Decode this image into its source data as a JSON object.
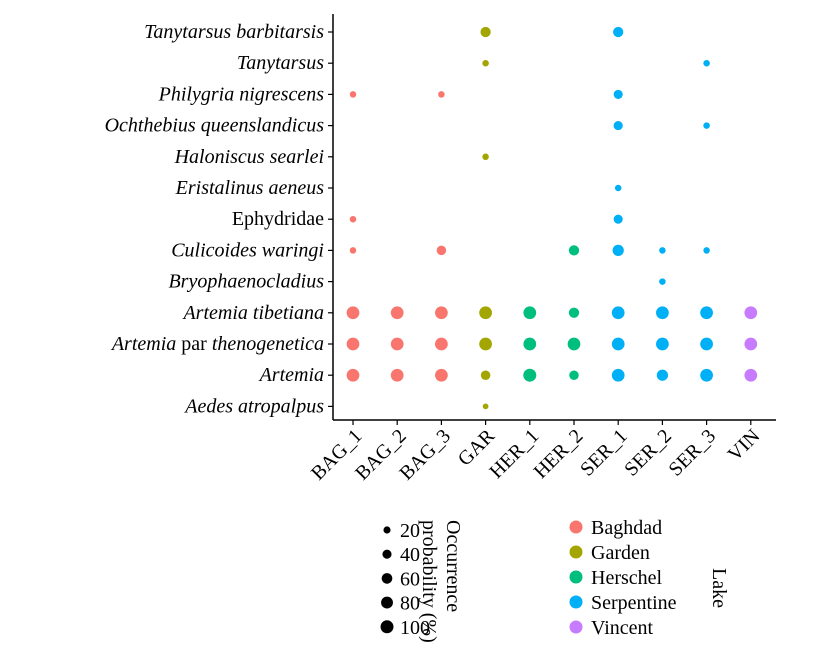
{
  "chart_data": {
    "type": "scatter",
    "title": "",
    "xlabel": "",
    "ylabel": "",
    "x_categories": [
      "BAG_1",
      "BAG_2",
      "BAG_3",
      "GAR",
      "HER_1",
      "HER_2",
      "SER_1",
      "SER_2",
      "SER_3",
      "VIN"
    ],
    "y_categories": [
      {
        "key": "tanytarsus-barbitarsis",
        "parts": [
          {
            "text": "Tanytarsus barbitarsis",
            "italic": true
          }
        ]
      },
      {
        "key": "tanytarsus",
        "parts": [
          {
            "text": "Tanytarsus",
            "italic": true
          }
        ]
      },
      {
        "key": "philygria-nigrescens",
        "parts": [
          {
            "text": "Philygria nigrescens",
            "italic": true
          }
        ]
      },
      {
        "key": "ochthebius-queenslandicus",
        "parts": [
          {
            "text": "Ochthebius queenslandicus",
            "italic": true
          }
        ]
      },
      {
        "key": "haloniscus-searlei",
        "parts": [
          {
            "text": "Haloniscus searlei",
            "italic": true
          }
        ]
      },
      {
        "key": "eristalinus-aeneus",
        "parts": [
          {
            "text": "Eristalinus aeneus",
            "italic": true
          }
        ]
      },
      {
        "key": "ephydridae",
        "parts": [
          {
            "text": "Ephydridae",
            "italic": false
          }
        ]
      },
      {
        "key": "culicoides-waringi",
        "parts": [
          {
            "text": "Culicoides waringi",
            "italic": true
          }
        ]
      },
      {
        "key": "bryophaenocladius",
        "parts": [
          {
            "text": "Bryophaenocladius",
            "italic": true
          }
        ]
      },
      {
        "key": "artemia-tibetiana",
        "parts": [
          {
            "text": "Artemia tibetiana",
            "italic": true
          }
        ]
      },
      {
        "key": "artemia-parthenogenetica",
        "parts": [
          {
            "text": "Artemia",
            "italic": true
          },
          {
            "text": " par ",
            "italic": false
          },
          {
            "text": "thenogenetica",
            "italic": true
          }
        ]
      },
      {
        "key": "artemia",
        "parts": [
          {
            "text": "Artemia",
            "italic": true
          }
        ]
      },
      {
        "key": "aedes-atropalpus",
        "parts": [
          {
            "text": "Aedes atropalpus",
            "italic": true
          }
        ]
      }
    ],
    "site_lake": {
      "BAG_1": "Baghdad",
      "BAG_2": "Baghdad",
      "BAG_3": "Baghdad",
      "GAR": "Garden",
      "HER_1": "Herschel",
      "HER_2": "Herschel",
      "SER_1": "Serpentine",
      "SER_2": "Serpentine",
      "SER_3": "Serpentine",
      "VIN": "Vincent"
    },
    "points": [
      {
        "y": 0,
        "x": "GAR",
        "value": 55
      },
      {
        "y": 0,
        "x": "SER_1",
        "value": 55
      },
      {
        "y": 1,
        "x": "GAR",
        "value": 15
      },
      {
        "y": 1,
        "x": "SER_3",
        "value": 15
      },
      {
        "y": 2,
        "x": "BAG_1",
        "value": 15
      },
      {
        "y": 2,
        "x": "BAG_3",
        "value": 15
      },
      {
        "y": 2,
        "x": "SER_1",
        "value": 40
      },
      {
        "y": 3,
        "x": "SER_1",
        "value": 40
      },
      {
        "y": 3,
        "x": "SER_3",
        "value": 15
      },
      {
        "y": 4,
        "x": "GAR",
        "value": 15
      },
      {
        "y": 5,
        "x": "SER_1",
        "value": 15
      },
      {
        "y": 6,
        "x": "BAG_1",
        "value": 15
      },
      {
        "y": 6,
        "x": "SER_1",
        "value": 40
      },
      {
        "y": 7,
        "x": "BAG_1",
        "value": 15
      },
      {
        "y": 7,
        "x": "BAG_3",
        "value": 45
      },
      {
        "y": 7,
        "x": "HER_2",
        "value": 55
      },
      {
        "y": 7,
        "x": "SER_1",
        "value": 70
      },
      {
        "y": 7,
        "x": "SER_2",
        "value": 15
      },
      {
        "y": 7,
        "x": "SER_3",
        "value": 15
      },
      {
        "y": 8,
        "x": "SER_2",
        "value": 15
      },
      {
        "y": 9,
        "x": "BAG_1",
        "value": 95
      },
      {
        "y": 9,
        "x": "BAG_2",
        "value": 95
      },
      {
        "y": 9,
        "x": "BAG_3",
        "value": 95
      },
      {
        "y": 9,
        "x": "GAR",
        "value": 95
      },
      {
        "y": 9,
        "x": "HER_1",
        "value": 95
      },
      {
        "y": 9,
        "x": "HER_2",
        "value": 55
      },
      {
        "y": 9,
        "x": "SER_1",
        "value": 95
      },
      {
        "y": 9,
        "x": "SER_2",
        "value": 95
      },
      {
        "y": 9,
        "x": "SER_3",
        "value": 95
      },
      {
        "y": 9,
        "x": "VIN",
        "value": 95
      },
      {
        "y": 10,
        "x": "BAG_1",
        "value": 95
      },
      {
        "y": 10,
        "x": "BAG_2",
        "value": 95
      },
      {
        "y": 10,
        "x": "BAG_3",
        "value": 95
      },
      {
        "y": 10,
        "x": "GAR",
        "value": 95
      },
      {
        "y": 10,
        "x": "HER_1",
        "value": 95
      },
      {
        "y": 10,
        "x": "HER_2",
        "value": 95
      },
      {
        "y": 10,
        "x": "SER_1",
        "value": 95
      },
      {
        "y": 10,
        "x": "SER_2",
        "value": 95
      },
      {
        "y": 10,
        "x": "SER_3",
        "value": 95
      },
      {
        "y": 10,
        "x": "VIN",
        "value": 95
      },
      {
        "y": 11,
        "x": "BAG_1",
        "value": 95
      },
      {
        "y": 11,
        "x": "BAG_2",
        "value": 95
      },
      {
        "y": 11,
        "x": "BAG_3",
        "value": 95
      },
      {
        "y": 11,
        "x": "GAR",
        "value": 45
      },
      {
        "y": 11,
        "x": "HER_1",
        "value": 100
      },
      {
        "y": 11,
        "x": "HER_2",
        "value": 45
      },
      {
        "y": 11,
        "x": "SER_1",
        "value": 95
      },
      {
        "y": 11,
        "x": "SER_2",
        "value": 70
      },
      {
        "y": 11,
        "x": "SER_3",
        "value": 95
      },
      {
        "y": 11,
        "x": "VIN",
        "value": 95
      },
      {
        "y": 12,
        "x": "GAR",
        "value": 10
      }
    ],
    "size_legend": {
      "title_lines": [
        "Occurrence",
        "probability (%)"
      ],
      "values": [
        20,
        40,
        60,
        80,
        100
      ],
      "labels": [
        "20",
        "40",
        "60",
        "80",
        "100"
      ]
    },
    "color_legend": {
      "title": "Lake",
      "entries": [
        {
          "label": "Baghdad",
          "color": "#F8766D"
        },
        {
          "label": "Garden",
          "color": "#A3A500"
        },
        {
          "label": "Herschel",
          "color": "#00BF7D"
        },
        {
          "label": "Serpentine",
          "color": "#00B0F6"
        },
        {
          "label": "Vincent",
          "color": "#C77CFF"
        }
      ]
    },
    "colors": {
      "Baghdad": "#F8766D",
      "Garden": "#A3A500",
      "Herschel": "#00BF7D",
      "Serpentine": "#00B0F6",
      "Vincent": "#C77CFF"
    },
    "grid": false,
    "legend_position": "bottom"
  }
}
